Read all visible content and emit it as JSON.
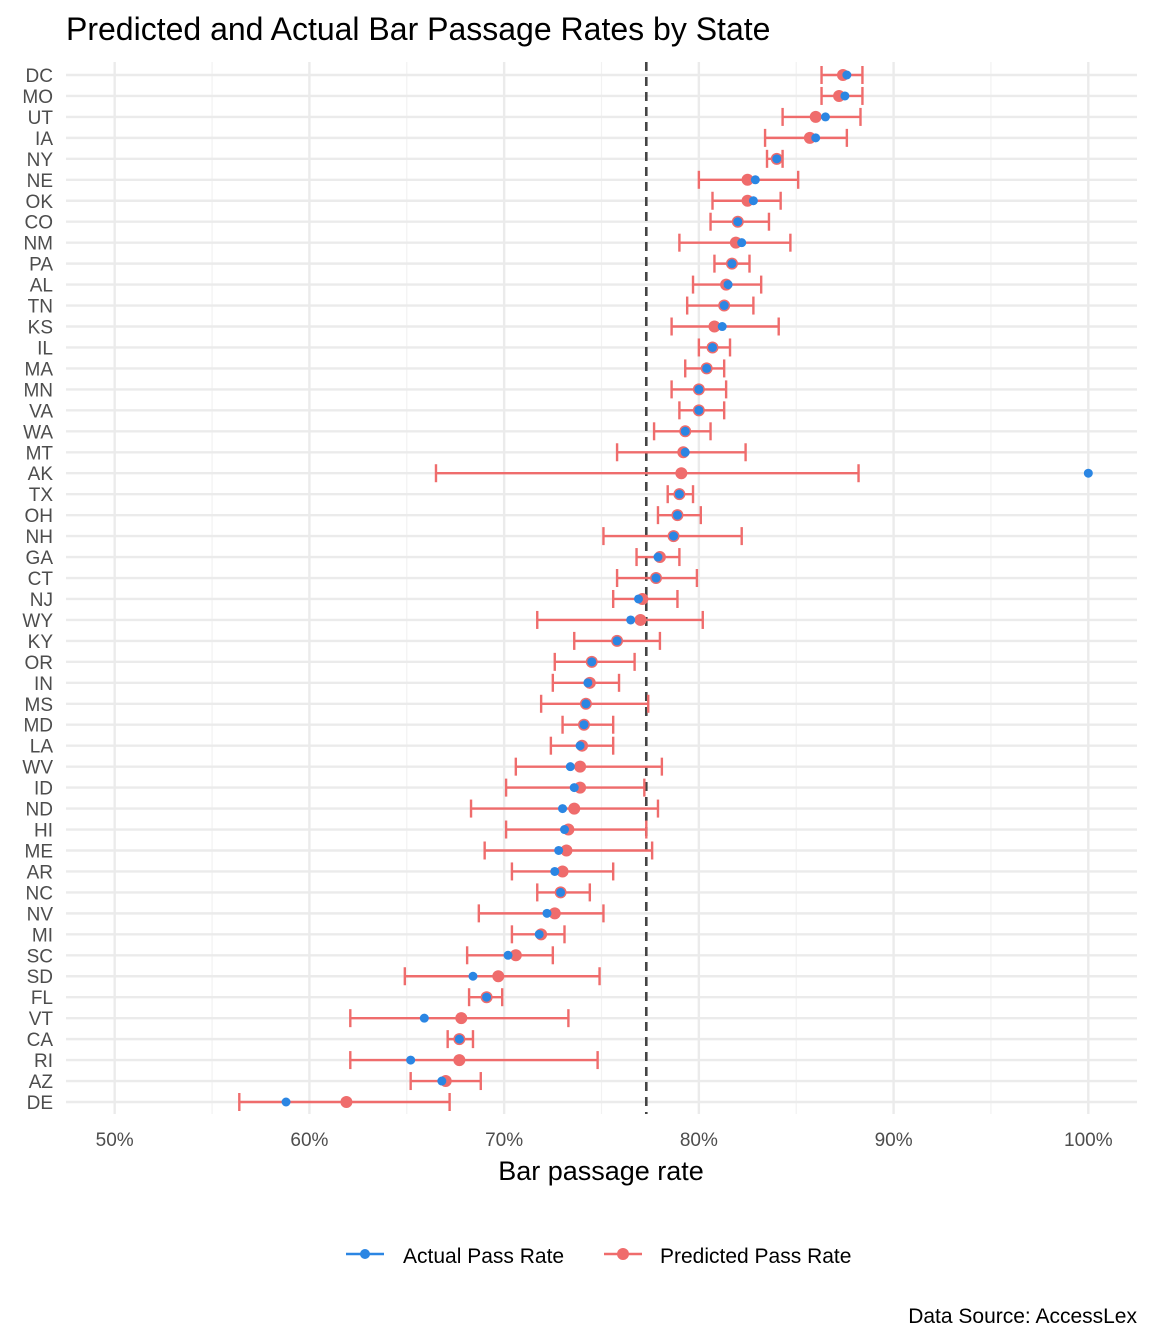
{
  "chart_data": {
    "type": "scatter",
    "title": "Predicted and Actual Bar Passage Rates by State",
    "xlabel": "Bar passage rate",
    "ylabel": "",
    "caption": "Data Source: AccessLex",
    "xlim": [
      0.475,
      1.025
    ],
    "xticks": [
      0.5,
      0.6,
      0.7,
      0.8,
      0.9,
      1.0
    ],
    "xtick_labels": [
      "50%",
      "60%",
      "70%",
      "80%",
      "90%",
      "100%"
    ],
    "reference_line": 0.773,
    "grid": true,
    "legend_position": "bottom",
    "colors": {
      "actual": "#2b86e3",
      "predicted": "#ef6c6c",
      "reference": "#444444",
      "grid": "#ebebeb"
    },
    "series": [
      {
        "name": "Actual Pass Rate",
        "key": "actual"
      },
      {
        "name": "Predicted Pass Rate",
        "key": "predicted"
      }
    ],
    "states": [
      {
        "state": "DC",
        "actual": 0.876,
        "predicted": 0.874,
        "low": 0.863,
        "high": 0.884
      },
      {
        "state": "MO",
        "actual": 0.875,
        "predicted": 0.872,
        "low": 0.863,
        "high": 0.884
      },
      {
        "state": "UT",
        "actual": 0.865,
        "predicted": 0.86,
        "low": 0.843,
        "high": 0.883
      },
      {
        "state": "IA",
        "actual": 0.86,
        "predicted": 0.857,
        "low": 0.834,
        "high": 0.876
      },
      {
        "state": "NY",
        "actual": 0.84,
        "predicted": 0.84,
        "low": 0.835,
        "high": 0.843
      },
      {
        "state": "NE",
        "actual": 0.829,
        "predicted": 0.825,
        "low": 0.8,
        "high": 0.851
      },
      {
        "state": "OK",
        "actual": 0.828,
        "predicted": 0.825,
        "low": 0.807,
        "high": 0.842
      },
      {
        "state": "CO",
        "actual": 0.82,
        "predicted": 0.82,
        "low": 0.806,
        "high": 0.836
      },
      {
        "state": "NM",
        "actual": 0.822,
        "predicted": 0.819,
        "low": 0.79,
        "high": 0.847
      },
      {
        "state": "PA",
        "actual": 0.817,
        "predicted": 0.817,
        "low": 0.808,
        "high": 0.826
      },
      {
        "state": "AL",
        "actual": 0.815,
        "predicted": 0.814,
        "low": 0.797,
        "high": 0.832
      },
      {
        "state": "TN",
        "actual": 0.813,
        "predicted": 0.813,
        "low": 0.794,
        "high": 0.828
      },
      {
        "state": "KS",
        "actual": 0.812,
        "predicted": 0.808,
        "low": 0.786,
        "high": 0.841
      },
      {
        "state": "IL",
        "actual": 0.807,
        "predicted": 0.807,
        "low": 0.8,
        "high": 0.816
      },
      {
        "state": "MA",
        "actual": 0.804,
        "predicted": 0.804,
        "low": 0.793,
        "high": 0.813
      },
      {
        "state": "MN",
        "actual": 0.8,
        "predicted": 0.8,
        "low": 0.786,
        "high": 0.814
      },
      {
        "state": "VA",
        "actual": 0.8,
        "predicted": 0.8,
        "low": 0.79,
        "high": 0.813
      },
      {
        "state": "WA",
        "actual": 0.793,
        "predicted": 0.793,
        "low": 0.777,
        "high": 0.806
      },
      {
        "state": "MT",
        "actual": 0.793,
        "predicted": 0.792,
        "low": 0.758,
        "high": 0.824
      },
      {
        "state": "AK",
        "actual": 1.0,
        "predicted": 0.791,
        "low": 0.665,
        "high": 0.882
      },
      {
        "state": "TX",
        "actual": 0.79,
        "predicted": 0.79,
        "low": 0.784,
        "high": 0.797
      },
      {
        "state": "OH",
        "actual": 0.789,
        "predicted": 0.789,
        "low": 0.779,
        "high": 0.801
      },
      {
        "state": "NH",
        "actual": 0.787,
        "predicted": 0.787,
        "low": 0.751,
        "high": 0.822
      },
      {
        "state": "GA",
        "actual": 0.779,
        "predicted": 0.78,
        "low": 0.768,
        "high": 0.79
      },
      {
        "state": "CT",
        "actual": 0.778,
        "predicted": 0.778,
        "low": 0.758,
        "high": 0.799
      },
      {
        "state": "NJ",
        "actual": 0.769,
        "predicted": 0.771,
        "low": 0.756,
        "high": 0.789
      },
      {
        "state": "WY",
        "actual": 0.765,
        "predicted": 0.77,
        "low": 0.717,
        "high": 0.802
      },
      {
        "state": "KY",
        "actual": 0.758,
        "predicted": 0.758,
        "low": 0.736,
        "high": 0.78
      },
      {
        "state": "OR",
        "actual": 0.745,
        "predicted": 0.745,
        "low": 0.726,
        "high": 0.767
      },
      {
        "state": "IN",
        "actual": 0.743,
        "predicted": 0.744,
        "low": 0.725,
        "high": 0.759
      },
      {
        "state": "MS",
        "actual": 0.742,
        "predicted": 0.742,
        "low": 0.719,
        "high": 0.774
      },
      {
        "state": "MD",
        "actual": 0.741,
        "predicted": 0.741,
        "low": 0.73,
        "high": 0.756
      },
      {
        "state": "LA",
        "actual": 0.739,
        "predicted": 0.74,
        "low": 0.724,
        "high": 0.756
      },
      {
        "state": "WV",
        "actual": 0.734,
        "predicted": 0.739,
        "low": 0.706,
        "high": 0.781
      },
      {
        "state": "ID",
        "actual": 0.736,
        "predicted": 0.739,
        "low": 0.701,
        "high": 0.772
      },
      {
        "state": "ND",
        "actual": 0.73,
        "predicted": 0.736,
        "low": 0.683,
        "high": 0.779
      },
      {
        "state": "HI",
        "actual": 0.731,
        "predicted": 0.733,
        "low": 0.701,
        "high": 0.773
      },
      {
        "state": "ME",
        "actual": 0.728,
        "predicted": 0.732,
        "low": 0.69,
        "high": 0.776
      },
      {
        "state": "AR",
        "actual": 0.726,
        "predicted": 0.73,
        "low": 0.704,
        "high": 0.756
      },
      {
        "state": "NC",
        "actual": 0.729,
        "predicted": 0.729,
        "low": 0.717,
        "high": 0.744
      },
      {
        "state": "NV",
        "actual": 0.722,
        "predicted": 0.726,
        "low": 0.687,
        "high": 0.751
      },
      {
        "state": "MI",
        "actual": 0.718,
        "predicted": 0.719,
        "low": 0.704,
        "high": 0.731
      },
      {
        "state": "SC",
        "actual": 0.702,
        "predicted": 0.706,
        "low": 0.681,
        "high": 0.725
      },
      {
        "state": "SD",
        "actual": 0.684,
        "predicted": 0.697,
        "low": 0.649,
        "high": 0.749
      },
      {
        "state": "FL",
        "actual": 0.691,
        "predicted": 0.691,
        "low": 0.682,
        "high": 0.699
      },
      {
        "state": "VT",
        "actual": 0.659,
        "predicted": 0.678,
        "low": 0.621,
        "high": 0.733
      },
      {
        "state": "CA",
        "actual": 0.677,
        "predicted": 0.677,
        "low": 0.671,
        "high": 0.684
      },
      {
        "state": "RI",
        "actual": 0.652,
        "predicted": 0.677,
        "low": 0.621,
        "high": 0.748
      },
      {
        "state": "AZ",
        "actual": 0.668,
        "predicted": 0.67,
        "low": 0.652,
        "high": 0.688
      },
      {
        "state": "DE",
        "actual": 0.588,
        "predicted": 0.619,
        "low": 0.564,
        "high": 0.672
      }
    ]
  }
}
